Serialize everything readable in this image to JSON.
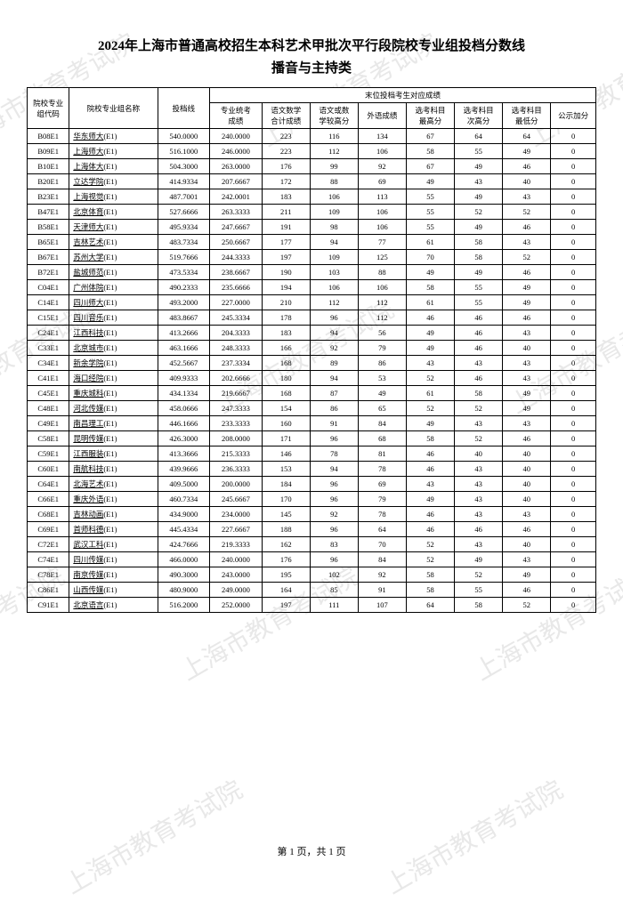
{
  "title": "2024年上海市普通高校招生本科艺术甲批次平行段院校专业组投档分数线",
  "subtitle": "播音与主持类",
  "headers": {
    "code": "院校专业\n组代码",
    "name": "院校专业组名称",
    "line": "投档线",
    "group": "末位投档考生对应成绩",
    "prof": "专业统考\n成绩",
    "lang": "语文数学\n合计成绩",
    "high": "语文或数\n学较高分",
    "foreign": "外语成绩",
    "max": "选考科目\n最高分",
    "mid": "选考科目\n次高分",
    "min": "选考科目\n最低分",
    "bonus": "公示加分"
  },
  "rows": [
    {
      "code": "B08E1",
      "name": "华东师大",
      "suffix": "(E1)",
      "line": "540.0000",
      "prof": "240.0000",
      "lang": "223",
      "high": "116",
      "foreign": "134",
      "max": "67",
      "mid": "64",
      "min": "64",
      "bonus": "0"
    },
    {
      "code": "B09E1",
      "name": "上海师大",
      "suffix": "(E1)",
      "line": "516.1000",
      "prof": "246.0000",
      "lang": "223",
      "high": "112",
      "foreign": "106",
      "max": "58",
      "mid": "55",
      "min": "49",
      "bonus": "0"
    },
    {
      "code": "B10E1",
      "name": "上海体大",
      "suffix": "(E1)",
      "line": "504.3000",
      "prof": "263.0000",
      "lang": "176",
      "high": "99",
      "foreign": "92",
      "max": "67",
      "mid": "49",
      "min": "46",
      "bonus": "0"
    },
    {
      "code": "B20E1",
      "name": "立达学院",
      "suffix": "(E1)",
      "line": "414.9334",
      "prof": "207.6667",
      "lang": "172",
      "high": "88",
      "foreign": "69",
      "max": "49",
      "mid": "43",
      "min": "40",
      "bonus": "0"
    },
    {
      "code": "B23E1",
      "name": "上海视觉",
      "suffix": "(E1)",
      "line": "487.7001",
      "prof": "242.0001",
      "lang": "183",
      "high": "106",
      "foreign": "113",
      "max": "55",
      "mid": "49",
      "min": "43",
      "bonus": "0"
    },
    {
      "code": "B47E1",
      "name": "北京体育",
      "suffix": "(E1)",
      "line": "527.6666",
      "prof": "263.3333",
      "lang": "211",
      "high": "109",
      "foreign": "106",
      "max": "55",
      "mid": "52",
      "min": "52",
      "bonus": "0"
    },
    {
      "code": "B58E1",
      "name": "天津师大",
      "suffix": "(E1)",
      "line": "495.9334",
      "prof": "247.6667",
      "lang": "191",
      "high": "98",
      "foreign": "106",
      "max": "55",
      "mid": "49",
      "min": "46",
      "bonus": "0"
    },
    {
      "code": "B65E1",
      "name": "吉林艺术",
      "suffix": "(E1)",
      "line": "483.7334",
      "prof": "250.6667",
      "lang": "177",
      "high": "94",
      "foreign": "77",
      "max": "61",
      "mid": "58",
      "min": "43",
      "bonus": "0"
    },
    {
      "code": "B67E1",
      "name": "苏州大学",
      "suffix": "(E1)",
      "line": "519.7666",
      "prof": "244.3333",
      "lang": "197",
      "high": "109",
      "foreign": "125",
      "max": "70",
      "mid": "58",
      "min": "52",
      "bonus": "0"
    },
    {
      "code": "B72E1",
      "name": "盐城师范",
      "suffix": "(E1)",
      "line": "473.5334",
      "prof": "238.6667",
      "lang": "190",
      "high": "103",
      "foreign": "88",
      "max": "49",
      "mid": "49",
      "min": "46",
      "bonus": "0"
    },
    {
      "code": "C04E1",
      "name": "广州体院",
      "suffix": "(E1)",
      "line": "490.2333",
      "prof": "235.6666",
      "lang": "194",
      "high": "106",
      "foreign": "106",
      "max": "58",
      "mid": "55",
      "min": "49",
      "bonus": "0"
    },
    {
      "code": "C14E1",
      "name": "四川师大",
      "suffix": "(E1)",
      "line": "493.2000",
      "prof": "227.0000",
      "lang": "210",
      "high": "112",
      "foreign": "112",
      "max": "61",
      "mid": "55",
      "min": "49",
      "bonus": "0"
    },
    {
      "code": "C15E1",
      "name": "四川音乐",
      "suffix": "(E1)",
      "line": "483.8667",
      "prof": "245.3334",
      "lang": "178",
      "high": "96",
      "foreign": "112",
      "max": "46",
      "mid": "46",
      "min": "46",
      "bonus": "0"
    },
    {
      "code": "C24E1",
      "name": "江西科技",
      "suffix": "(E1)",
      "line": "413.2666",
      "prof": "204.3333",
      "lang": "183",
      "high": "94",
      "foreign": "56",
      "max": "49",
      "mid": "46",
      "min": "43",
      "bonus": "0"
    },
    {
      "code": "C33E1",
      "name": "北京城市",
      "suffix": "(E1)",
      "line": "463.1666",
      "prof": "248.3333",
      "lang": "166",
      "high": "92",
      "foreign": "79",
      "max": "49",
      "mid": "46",
      "min": "40",
      "bonus": "0"
    },
    {
      "code": "C34E1",
      "name": "新余学院",
      "suffix": "(E1)",
      "line": "452.5667",
      "prof": "237.3334",
      "lang": "168",
      "high": "89",
      "foreign": "86",
      "max": "43",
      "mid": "43",
      "min": "43",
      "bonus": "0"
    },
    {
      "code": "C41E1",
      "name": "海口经院",
      "suffix": "(E1)",
      "line": "409.9333",
      "prof": "202.6666",
      "lang": "180",
      "high": "94",
      "foreign": "53",
      "max": "52",
      "mid": "46",
      "min": "43",
      "bonus": "0"
    },
    {
      "code": "C45E1",
      "name": "重庆城科",
      "suffix": "(E1)",
      "line": "434.1334",
      "prof": "219.6667",
      "lang": "168",
      "high": "87",
      "foreign": "49",
      "max": "61",
      "mid": "58",
      "min": "49",
      "bonus": "0"
    },
    {
      "code": "C48E1",
      "name": "河北传媒",
      "suffix": "(E1)",
      "line": "458.0666",
      "prof": "247.3333",
      "lang": "154",
      "high": "86",
      "foreign": "65",
      "max": "52",
      "mid": "52",
      "min": "49",
      "bonus": "0"
    },
    {
      "code": "C49E1",
      "name": "南昌理工",
      "suffix": "(E1)",
      "line": "446.1666",
      "prof": "233.3333",
      "lang": "160",
      "high": "91",
      "foreign": "84",
      "max": "49",
      "mid": "43",
      "min": "43",
      "bonus": "0"
    },
    {
      "code": "C58E1",
      "name": "昆明传媒",
      "suffix": "(E1)",
      "line": "426.3000",
      "prof": "208.0000",
      "lang": "171",
      "high": "96",
      "foreign": "68",
      "max": "58",
      "mid": "52",
      "min": "46",
      "bonus": "0"
    },
    {
      "code": "C59E1",
      "name": "江西服装",
      "suffix": "(E1)",
      "line": "413.3666",
      "prof": "215.3333",
      "lang": "146",
      "high": "78",
      "foreign": "81",
      "max": "46",
      "mid": "40",
      "min": "40",
      "bonus": "0"
    },
    {
      "code": "C60E1",
      "name": "南航科技",
      "suffix": "(E1)",
      "line": "439.9666",
      "prof": "236.3333",
      "lang": "153",
      "high": "94",
      "foreign": "78",
      "max": "46",
      "mid": "43",
      "min": "40",
      "bonus": "0"
    },
    {
      "code": "C64E1",
      "name": "北海艺术",
      "suffix": "(E1)",
      "line": "409.5000",
      "prof": "200.0000",
      "lang": "184",
      "high": "96",
      "foreign": "69",
      "max": "43",
      "mid": "43",
      "min": "40",
      "bonus": "0"
    },
    {
      "code": "C66E1",
      "name": "重庆外语",
      "suffix": "(E1)",
      "line": "460.7334",
      "prof": "245.6667",
      "lang": "170",
      "high": "96",
      "foreign": "79",
      "max": "49",
      "mid": "43",
      "min": "40",
      "bonus": "0"
    },
    {
      "code": "C68E1",
      "name": "吉林动画",
      "suffix": "(E1)",
      "line": "434.9000",
      "prof": "234.0000",
      "lang": "145",
      "high": "92",
      "foreign": "78",
      "max": "46",
      "mid": "43",
      "min": "43",
      "bonus": "0"
    },
    {
      "code": "C69E1",
      "name": "首师科德",
      "suffix": "(E1)",
      "line": "445.4334",
      "prof": "227.6667",
      "lang": "188",
      "high": "96",
      "foreign": "64",
      "max": "46",
      "mid": "46",
      "min": "46",
      "bonus": "0"
    },
    {
      "code": "C72E1",
      "name": "武汉工科",
      "suffix": "(E1)",
      "line": "424.7666",
      "prof": "219.3333",
      "lang": "162",
      "high": "83",
      "foreign": "70",
      "max": "52",
      "mid": "43",
      "min": "40",
      "bonus": "0"
    },
    {
      "code": "C74E1",
      "name": "四川传媒",
      "suffix": "(E1)",
      "line": "466.0000",
      "prof": "240.0000",
      "lang": "176",
      "high": "96",
      "foreign": "84",
      "max": "52",
      "mid": "49",
      "min": "43",
      "bonus": "0"
    },
    {
      "code": "C78E1",
      "name": "南京传媒",
      "suffix": "(E1)",
      "line": "490.3000",
      "prof": "243.0000",
      "lang": "195",
      "high": "102",
      "foreign": "92",
      "max": "58",
      "mid": "52",
      "min": "49",
      "bonus": "0"
    },
    {
      "code": "C86E1",
      "name": "山西传媒",
      "suffix": "(E1)",
      "line": "480.9000",
      "prof": "249.0000",
      "lang": "164",
      "high": "85",
      "foreign": "91",
      "max": "58",
      "mid": "55",
      "min": "46",
      "bonus": "0"
    },
    {
      "code": "C91E1",
      "name": "北京语言",
      "suffix": "(E1)",
      "line": "516.2000",
      "prof": "252.0000",
      "lang": "197",
      "high": "111",
      "foreign": "107",
      "max": "64",
      "mid": "58",
      "min": "52",
      "bonus": "0"
    }
  ],
  "footer": "第 1 页，共 1 页",
  "watermark_text": "上海市教育考试院"
}
